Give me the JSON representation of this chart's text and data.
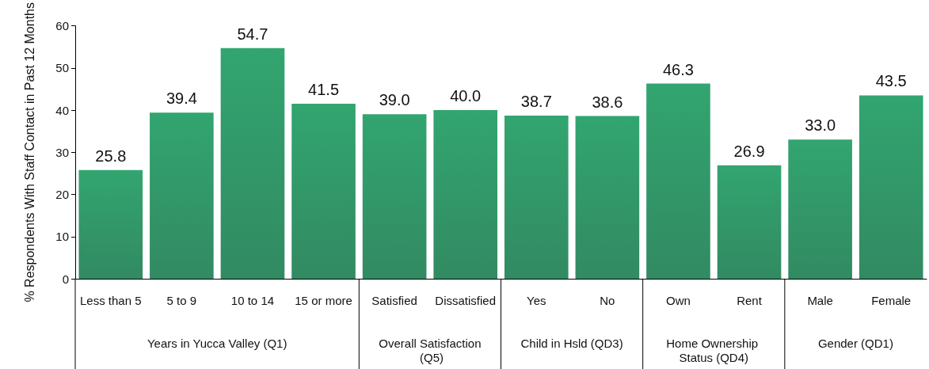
{
  "chart_data": {
    "type": "bar",
    "ylabel": "% Respondents With Staff Contact in Past 12 Months",
    "categories": [
      "Less than 5",
      "5 to 9",
      "10 to 14",
      "15 or more",
      "Satisfied",
      "Dissatisfied",
      "Yes",
      "No",
      "Own",
      "Rent",
      "Male",
      "Female"
    ],
    "values": [
      25.8,
      39.4,
      54.7,
      41.5,
      39.0,
      40.0,
      38.7,
      38.6,
      46.3,
      26.9,
      33.0,
      43.5
    ],
    "value_labels": [
      "25.8",
      "39.4",
      "54.7",
      "41.5",
      "39.0",
      "40.0",
      "38.7",
      "38.6",
      "46.3",
      "26.9",
      "33.0",
      "43.5"
    ],
    "color": "#28845a",
    "ylim": [
      0,
      60
    ],
    "yticks": [
      0,
      10,
      20,
      30,
      40,
      50,
      60
    ],
    "grid": false,
    "annotations": [
      "Years in Yucca Valley (Q1)",
      "Overall Satisfaction (Q5)",
      "Child in Hsld (QD3)",
      "Home Ownership Status (QD4)",
      "Gender (QD1)"
    ]
  }
}
